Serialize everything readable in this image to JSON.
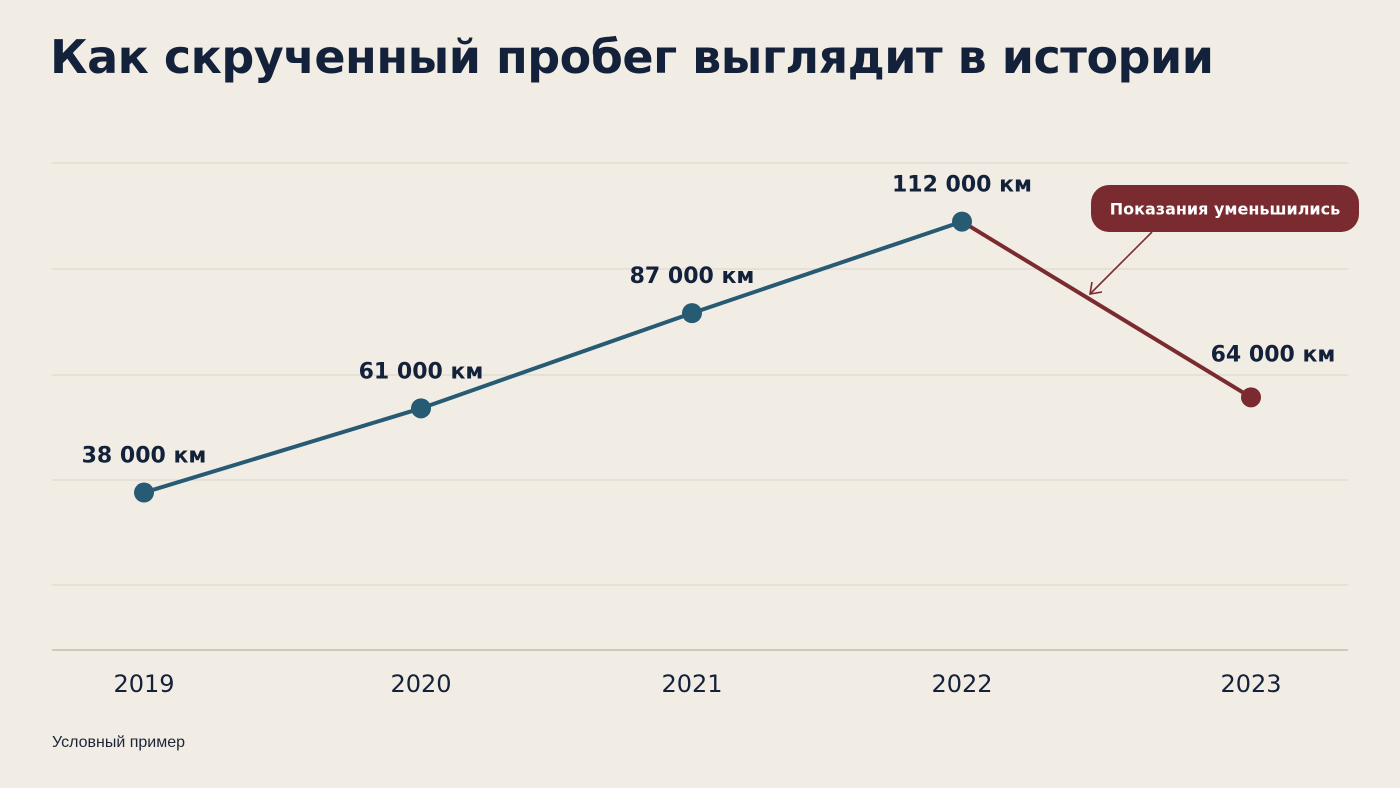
{
  "chart_data": {
    "type": "line",
    "title": "Как скрученный пробег выглядит в истории",
    "categories": [
      "2019",
      "2020",
      "2021",
      "2022",
      "2023"
    ],
    "values": [
      38000,
      61000,
      87000,
      112000,
      64000
    ],
    "value_labels": [
      "38 000 км",
      "61 000 км",
      "87 000 км",
      "112 000 км",
      "64 000 км"
    ],
    "xlabel": "",
    "ylabel": "",
    "ylim": [
      -5000,
      128000
    ],
    "grid": true,
    "colors": {
      "rising": "#275a73",
      "drop": "#7a2b2f"
    },
    "annotation": {
      "text": "Показания уменьшились",
      "target_segment": [
        "2022",
        "2023"
      ]
    },
    "note": "Условный пример"
  }
}
